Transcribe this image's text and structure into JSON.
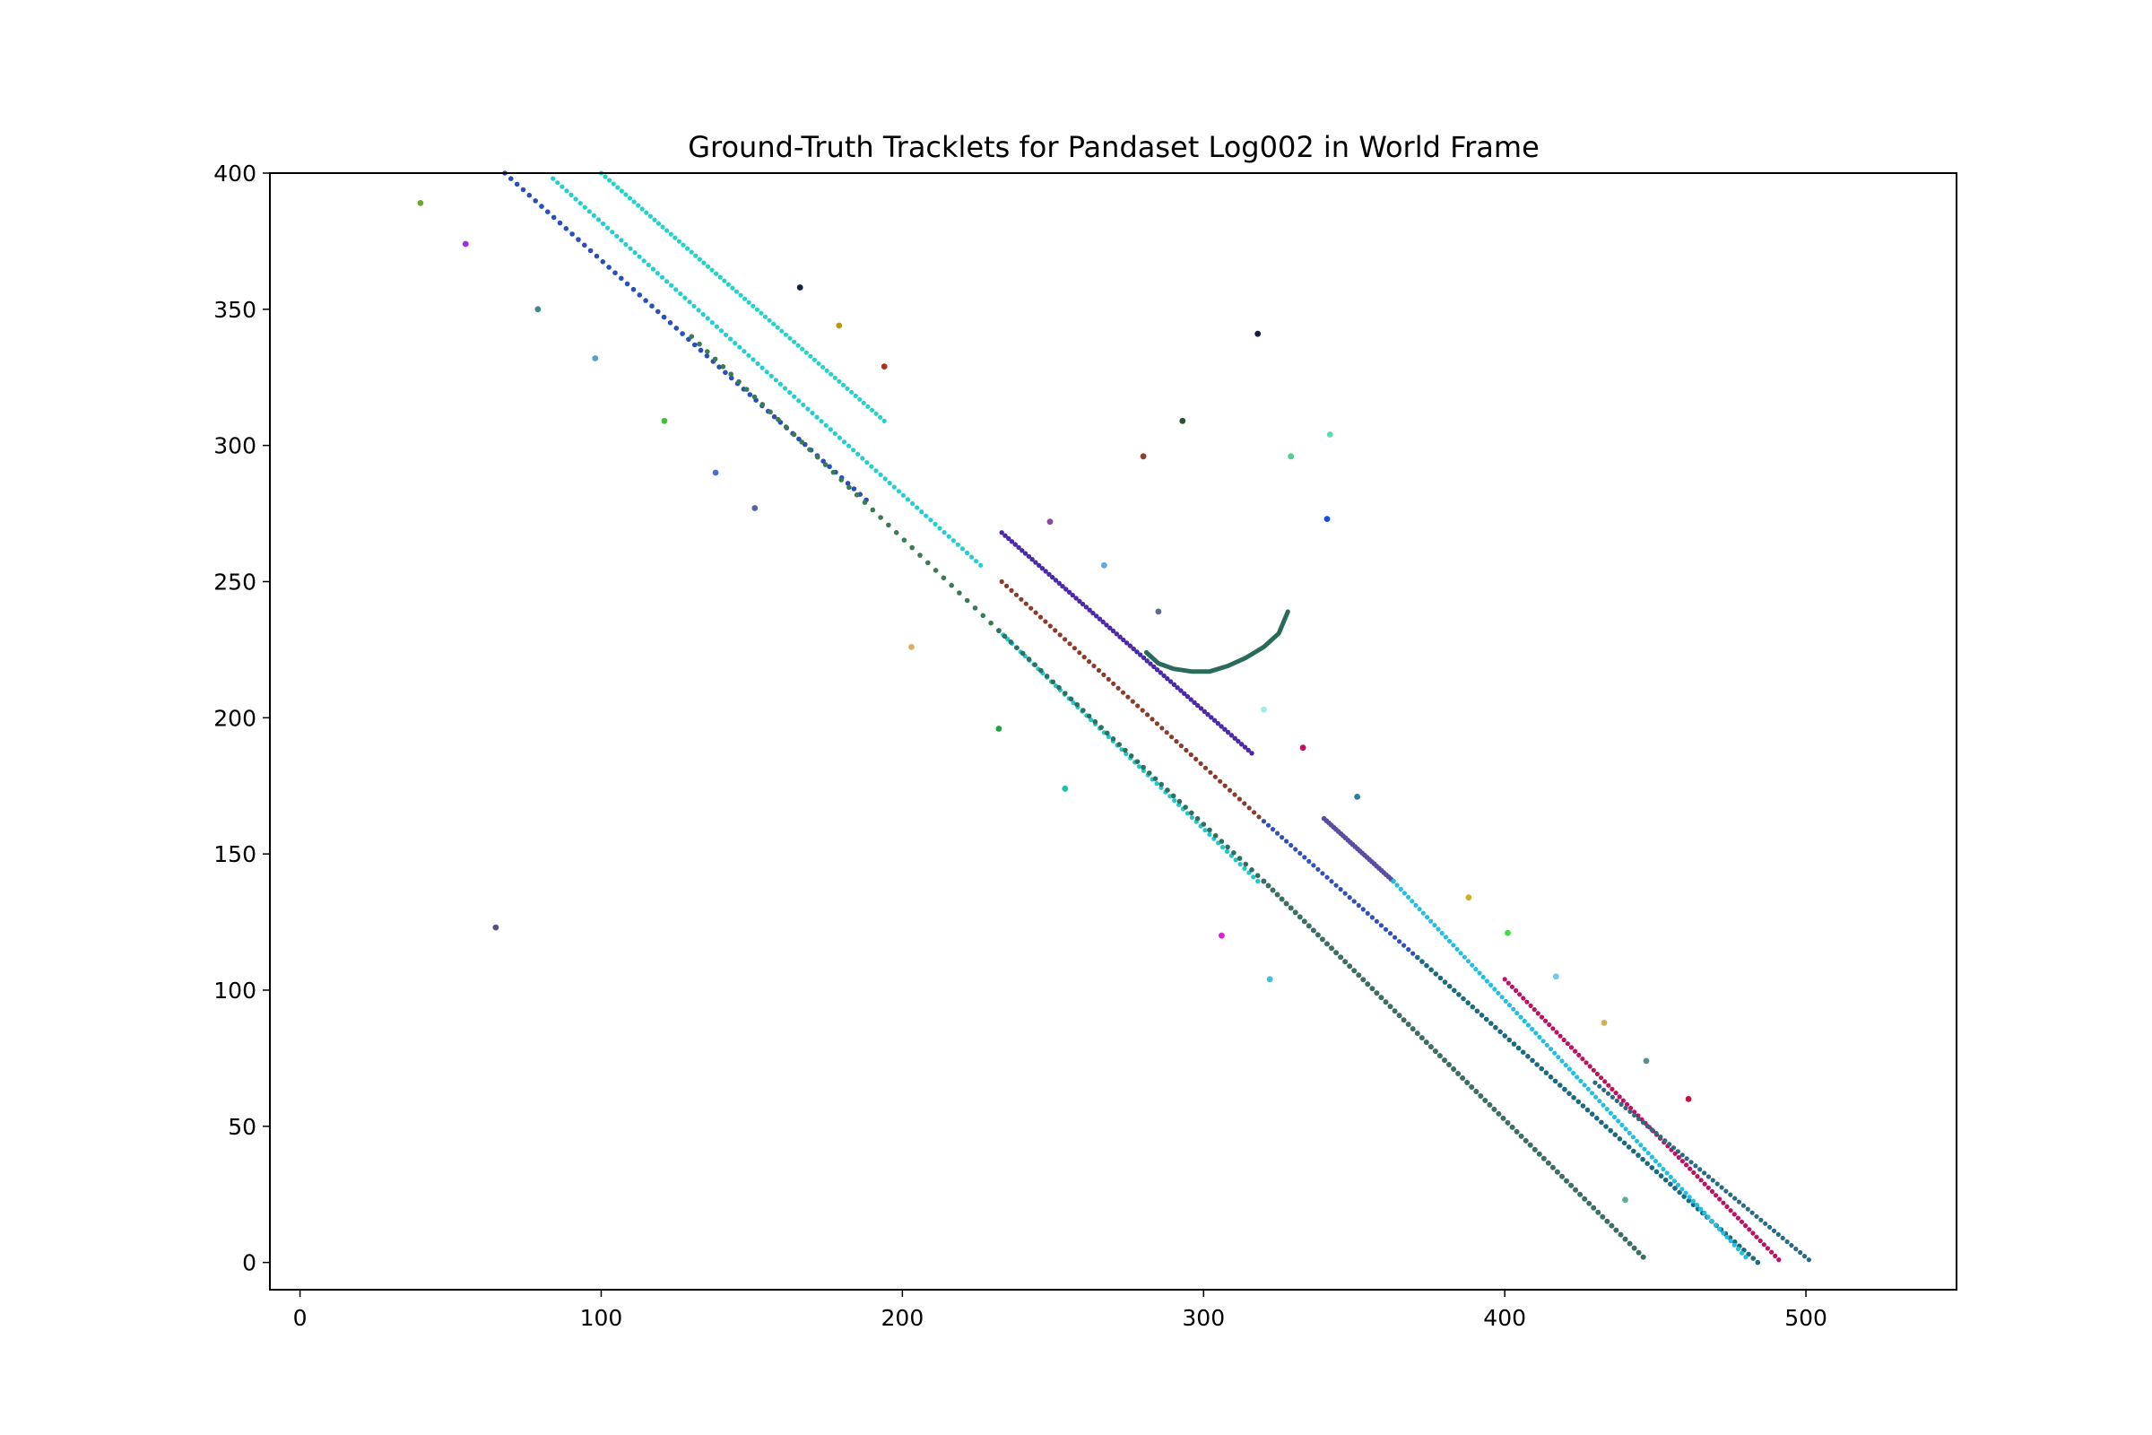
{
  "chart_data": {
    "type": "scatter",
    "title": "Ground-Truth Tracklets for Pandaset Log002 in World Frame",
    "xlabel": "",
    "ylabel": "",
    "xlim": [
      -10,
      550
    ],
    "ylim": [
      -10,
      400
    ],
    "xticks": [
      0,
      100,
      200,
      300,
      400,
      500
    ],
    "yticks": [
      0,
      50,
      100,
      150,
      200,
      250,
      300,
      350,
      400
    ],
    "grid": false,
    "legend": "none",
    "tracks": [
      {
        "color": "#1fd5c8",
        "x0": 100,
        "y0": 400,
        "x1": 194,
        "y1": 309,
        "n": 70,
        "r": 2.6
      },
      {
        "color": "#22cfd0",
        "x0": 84,
        "y0": 398,
        "x1": 226,
        "y1": 256,
        "n": 95,
        "r": 2.6
      },
      {
        "color": "#2a4fb8",
        "x0": 68,
        "y0": 400,
        "x1": 188,
        "y1": 280,
        "n": 60,
        "r": 2.8
      },
      {
        "color": "#3a7a55",
        "x0": 130,
        "y0": 340,
        "x1": 232,
        "y1": 232,
        "n": 40,
        "r": 2.8
      },
      {
        "color": "#1fc7c9",
        "x0": 232,
        "y0": 232,
        "x1": 318,
        "y1": 140,
        "n": 60,
        "r": 2.6
      },
      {
        "color": "#2c7060",
        "x0": 232,
        "y0": 232,
        "x1": 320,
        "y1": 140,
        "n": 45,
        "r": 2.8
      },
      {
        "color": "#3c6e66",
        "x0": 320,
        "y0": 140,
        "x1": 446,
        "y1": 2,
        "n": 85,
        "r": 3.0
      },
      {
        "color": "#8b3b2a",
        "x0": 233,
        "y0": 250,
        "x1": 320,
        "y1": 162,
        "n": 55,
        "r": 2.6
      },
      {
        "color": "#3050c0",
        "x0": 320,
        "y0": 162,
        "x1": 371,
        "y1": 112,
        "n": 35,
        "r": 2.6
      },
      {
        "color": "#4a2aa8",
        "x0": 233,
        "y0": 268,
        "x1": 316,
        "y1": 187,
        "n": 75,
        "r": 2.7
      },
      {
        "color": "#1a6a80",
        "x0": 371,
        "y0": 112,
        "x1": 484,
        "y1": 0,
        "n": 75,
        "r": 2.8
      },
      {
        "color": "#5a4ea0",
        "x0": 340,
        "y0": 163,
        "x1": 363,
        "y1": 140,
        "n": 30,
        "r": 2.8
      },
      {
        "color": "#24bee0",
        "x0": 363,
        "y0": 140,
        "x1": 480,
        "y1": 2,
        "n": 95,
        "r": 2.6
      },
      {
        "color": "#c01060",
        "x0": 400,
        "y0": 104,
        "x1": 491,
        "y1": 1,
        "n": 75,
        "r": 2.6
      },
      {
        "color": "#2a6a84",
        "x0": 430,
        "y0": 66,
        "x1": 501,
        "y1": 1,
        "n": 50,
        "r": 2.6
      }
    ],
    "arc": {
      "color": "#2a6a5a",
      "x": [
        281,
        285,
        290,
        296,
        302,
        308,
        314,
        320,
        325,
        328
      ],
      "y": [
        224,
        220,
        218,
        217,
        217,
        219,
        222,
        226,
        231,
        239
      ]
    },
    "points": [
      {
        "x": 40,
        "y": 389,
        "c": "#6aaa2a"
      },
      {
        "x": 55,
        "y": 374,
        "c": "#9a30e0"
      },
      {
        "x": 79,
        "y": 350,
        "c": "#3a8a8a"
      },
      {
        "x": 98,
        "y": 332,
        "c": "#5aa0c8"
      },
      {
        "x": 166,
        "y": 358,
        "c": "#102040"
      },
      {
        "x": 179,
        "y": 344,
        "c": "#b89a10"
      },
      {
        "x": 194,
        "y": 329,
        "c": "#b03020"
      },
      {
        "x": 121,
        "y": 309,
        "c": "#40c040"
      },
      {
        "x": 138,
        "y": 290,
        "c": "#4a70d0"
      },
      {
        "x": 151,
        "y": 277,
        "c": "#5a60a8"
      },
      {
        "x": 249,
        "y": 272,
        "c": "#8a4aa0"
      },
      {
        "x": 267,
        "y": 256,
        "c": "#60a8e0"
      },
      {
        "x": 280,
        "y": 296,
        "c": "#8a4030"
      },
      {
        "x": 293,
        "y": 309,
        "c": "#2a5030"
      },
      {
        "x": 318,
        "y": 341,
        "c": "#102040"
      },
      {
        "x": 329,
        "y": 296,
        "c": "#50d090"
      },
      {
        "x": 342,
        "y": 304,
        "c": "#60d8b0"
      },
      {
        "x": 341,
        "y": 273,
        "c": "#1050e0"
      },
      {
        "x": 285,
        "y": 239,
        "c": "#5a6a90"
      },
      {
        "x": 203,
        "y": 226,
        "c": "#d8b060"
      },
      {
        "x": 232,
        "y": 196,
        "c": "#20a040"
      },
      {
        "x": 254,
        "y": 174,
        "c": "#20c0b0"
      },
      {
        "x": 320,
        "y": 203,
        "c": "#a0f0e0"
      },
      {
        "x": 333,
        "y": 189,
        "c": "#c01060"
      },
      {
        "x": 351,
        "y": 171,
        "c": "#2a80a0"
      },
      {
        "x": 306,
        "y": 120,
        "c": "#e020d0"
      },
      {
        "x": 322,
        "y": 104,
        "c": "#40c0e0"
      },
      {
        "x": 388,
        "y": 134,
        "c": "#d0b020"
      },
      {
        "x": 401,
        "y": 121,
        "c": "#40e040"
      },
      {
        "x": 417,
        "y": 105,
        "c": "#70c8f0"
      },
      {
        "x": 433,
        "y": 88,
        "c": "#d0b050"
      },
      {
        "x": 447,
        "y": 74,
        "c": "#5a9090"
      },
      {
        "x": 461,
        "y": 60,
        "c": "#c01040"
      },
      {
        "x": 440,
        "y": 23,
        "c": "#60b090"
      },
      {
        "x": 65,
        "y": 123,
        "c": "#5a5080"
      }
    ]
  }
}
